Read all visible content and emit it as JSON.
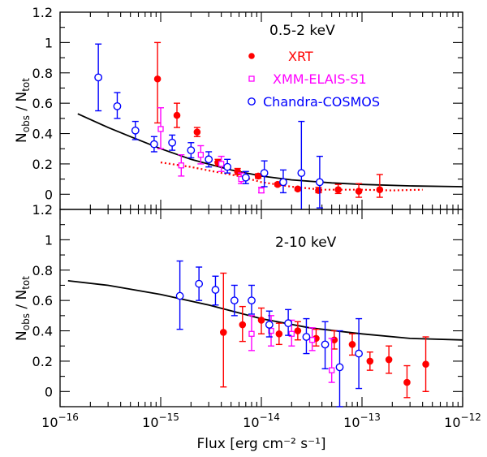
{
  "chart_data": [
    {
      "type": "scatter",
      "panel": "0.5-2 keV",
      "xscale": "log",
      "xlim": [
        1e-16,
        1e-12
      ],
      "ylim": [
        -0.1,
        1.2
      ],
      "ylabel": "N_obs / N_tot",
      "ylabel_main": "N",
      "ylabel_sub1": "obs",
      "ylabel_slash": " / N",
      "ylabel_sub2": "tot",
      "ytick_labels": [
        "0",
        "0.2",
        "0.4",
        "0.6",
        "0.8",
        "1",
        "1.2"
      ],
      "yticks": [
        0,
        0.2,
        0.4,
        0.6,
        0.8,
        1.0,
        1.2
      ],
      "legend": [
        {
          "name": "XRT",
          "color": "#ff0000",
          "marker": "filled-circle"
        },
        {
          "name": "XMM-ELAIS-S1",
          "color": "#ff00ff",
          "marker": "open-square"
        },
        {
          "name": "Chandra-COSMOS",
          "color": "#0000ff",
          "marker": "open-circle"
        }
      ],
      "model_curve": {
        "color": "#000000",
        "x": [
          1.5e-16,
          3e-16,
          5e-16,
          1e-15,
          2e-15,
          5e-15,
          1e-14,
          2e-14,
          5e-14,
          1e-13,
          3e-13,
          1e-12
        ],
        "y": [
          0.53,
          0.44,
          0.38,
          0.3,
          0.23,
          0.16,
          0.12,
          0.095,
          0.075,
          0.065,
          0.055,
          0.05
        ]
      },
      "dotted_curve": {
        "color": "#ff0000",
        "x": [
          1e-15,
          2e-15,
          4e-15,
          6e-15,
          1e-14,
          2e-14,
          4e-14,
          1e-13,
          2e-13,
          4e-13
        ],
        "y": [
          0.21,
          0.18,
          0.14,
          0.12,
          0.08,
          0.05,
          0.03,
          0.03,
          0.025,
          0.03
        ]
      },
      "series": [
        {
          "name": "XRT",
          "color": "#ff0000",
          "marker": "filled-circle",
          "points": [
            {
              "x": 9.3e-16,
              "y": 0.76,
              "lo": 0.47,
              "hi": 1.0
            },
            {
              "x": 1.45e-15,
              "y": 0.52,
              "lo": 0.44,
              "hi": 0.6
            },
            {
              "x": 2.3e-15,
              "y": 0.41,
              "lo": 0.38,
              "hi": 0.44
            },
            {
              "x": 3.7e-15,
              "y": 0.21,
              "lo": 0.19,
              "hi": 0.23
            },
            {
              "x": 5.8e-15,
              "y": 0.15,
              "lo": 0.13,
              "hi": 0.17
            },
            {
              "x": 9.3e-15,
              "y": 0.12,
              "lo": 0.105,
              "hi": 0.135
            },
            {
              "x": 1.45e-14,
              "y": 0.065,
              "lo": 0.055,
              "hi": 0.075
            },
            {
              "x": 2.3e-14,
              "y": 0.035,
              "lo": 0.025,
              "hi": 0.045
            },
            {
              "x": 3.7e-14,
              "y": 0.025,
              "lo": 0.01,
              "hi": 0.045
            },
            {
              "x": 5.8e-14,
              "y": 0.03,
              "lo": 0.005,
              "hi": 0.065
            },
            {
              "x": 9.3e-14,
              "y": 0.02,
              "lo": -0.02,
              "hi": 0.07
            },
            {
              "x": 1.5e-13,
              "y": 0.03,
              "lo": -0.02,
              "hi": 0.13
            }
          ]
        },
        {
          "name": "XMM-ELAIS-S1",
          "color": "#ff00ff",
          "marker": "open-square",
          "points": [
            {
              "x": 1e-15,
              "y": 0.43,
              "lo": 0.3,
              "hi": 0.57
            },
            {
              "x": 1.6e-15,
              "y": 0.19,
              "lo": 0.12,
              "hi": 0.26
            },
            {
              "x": 2.5e-15,
              "y": 0.26,
              "lo": 0.2,
              "hi": 0.32
            },
            {
              "x": 4e-15,
              "y": 0.2,
              "lo": 0.15,
              "hi": 0.25
            },
            {
              "x": 6.3e-15,
              "y": 0.1,
              "lo": 0.07,
              "hi": 0.14
            },
            {
              "x": 1e-14,
              "y": 0.025,
              "lo": 0.01,
              "hi": 0.045
            }
          ]
        },
        {
          "name": "Chandra-COSMOS",
          "color": "#0000ff",
          "marker": "open-circle",
          "points": [
            {
              "x": 2.4e-16,
              "y": 0.77,
              "lo": 0.55,
              "hi": 0.99
            },
            {
              "x": 3.7e-16,
              "y": 0.58,
              "lo": 0.5,
              "hi": 0.67
            },
            {
              "x": 5.6e-16,
              "y": 0.42,
              "lo": 0.36,
              "hi": 0.48
            },
            {
              "x": 8.6e-16,
              "y": 0.33,
              "lo": 0.28,
              "hi": 0.38
            },
            {
              "x": 1.3e-15,
              "y": 0.34,
              "lo": 0.29,
              "hi": 0.39
            },
            {
              "x": 2e-15,
              "y": 0.29,
              "lo": 0.24,
              "hi": 0.34
            },
            {
              "x": 3e-15,
              "y": 0.23,
              "lo": 0.18,
              "hi": 0.28
            },
            {
              "x": 4.6e-15,
              "y": 0.18,
              "lo": 0.14,
              "hi": 0.23
            },
            {
              "x": 7e-15,
              "y": 0.11,
              "lo": 0.07,
              "hi": 0.15
            },
            {
              "x": 1.07e-14,
              "y": 0.14,
              "lo": 0.05,
              "hi": 0.22
            },
            {
              "x": 1.65e-14,
              "y": 0.08,
              "lo": 0.01,
              "hi": 0.16
            },
            {
              "x": 2.5e-14,
              "y": 0.14,
              "lo": -0.12,
              "hi": 0.48
            },
            {
              "x": 3.8e-14,
              "y": 0.08,
              "lo": -0.09,
              "hi": 0.25
            }
          ]
        }
      ]
    },
    {
      "type": "scatter",
      "panel": "2-10 keV",
      "xscale": "log",
      "xlim": [
        1e-16,
        1e-12
      ],
      "ylim": [
        -0.1,
        1.2
      ],
      "xlabel": "Flux [erg cm⁻² s⁻¹]",
      "ylabel": "N_obs / N_tot",
      "ylabel_main": "N",
      "ylabel_sub1": "obs",
      "ylabel_slash": " / N",
      "ylabel_sub2": "tot",
      "ytick_labels": [
        "0",
        "0.2",
        "0.4",
        "0.6",
        "0.8",
        "1",
        "1.2"
      ],
      "yticks": [
        0,
        0.2,
        0.4,
        0.6,
        0.8,
        1.0,
        1.2
      ],
      "xtick_labels": [
        {
          "mant": "10",
          "exp": "−16"
        },
        {
          "mant": "10",
          "exp": "−15"
        },
        {
          "mant": "10",
          "exp": "−14"
        },
        {
          "mant": "10",
          "exp": "−13"
        },
        {
          "mant": "10",
          "exp": "−12"
        }
      ],
      "xticks": [
        1e-16,
        1e-15,
        1e-14,
        1e-13,
        1e-12
      ],
      "model_curve": {
        "color": "#000000",
        "x": [
          1.2e-16,
          3e-16,
          1e-15,
          3e-15,
          1e-14,
          3e-14,
          1e-13,
          3e-13,
          1e-12
        ],
        "y": [
          0.73,
          0.7,
          0.64,
          0.57,
          0.48,
          0.42,
          0.38,
          0.35,
          0.34
        ]
      },
      "series": [
        {
          "name": "XRT",
          "color": "#ff0000",
          "points": [
            {
              "x": 4.2e-15,
              "y": 0.39,
              "lo": 0.03,
              "hi": 0.78
            },
            {
              "x": 6.5e-15,
              "y": 0.44,
              "lo": 0.33,
              "hi": 0.56
            },
            {
              "x": 1e-14,
              "y": 0.47,
              "lo": 0.38,
              "hi": 0.55
            },
            {
              "x": 1.5e-14,
              "y": 0.38,
              "lo": 0.31,
              "hi": 0.45
            },
            {
              "x": 2.3e-14,
              "y": 0.4,
              "lo": 0.34,
              "hi": 0.46
            },
            {
              "x": 3.5e-14,
              "y": 0.35,
              "lo": 0.3,
              "hi": 0.41
            },
            {
              "x": 5.3e-14,
              "y": 0.34,
              "lo": 0.28,
              "hi": 0.4
            },
            {
              "x": 8e-14,
              "y": 0.31,
              "lo": 0.24,
              "hi": 0.38
            },
            {
              "x": 1.2e-13,
              "y": 0.2,
              "lo": 0.14,
              "hi": 0.26
            },
            {
              "x": 1.85e-13,
              "y": 0.21,
              "lo": 0.12,
              "hi": 0.3
            },
            {
              "x": 2.8e-13,
              "y": 0.06,
              "lo": -0.04,
              "hi": 0.17
            },
            {
              "x": 4.3e-13,
              "y": 0.18,
              "lo": 0.0,
              "hi": 0.36
            }
          ]
        },
        {
          "name": "XMM-ELAIS-S1",
          "color": "#ff00ff",
          "points": [
            {
              "x": 8e-15,
              "y": 0.38,
              "lo": 0.27,
              "hi": 0.5
            },
            {
              "x": 1.25e-14,
              "y": 0.4,
              "lo": 0.3,
              "hi": 0.5
            },
            {
              "x": 2e-14,
              "y": 0.38,
              "lo": 0.3,
              "hi": 0.47
            },
            {
              "x": 3.2e-14,
              "y": 0.34,
              "lo": 0.27,
              "hi": 0.42
            },
            {
              "x": 5e-14,
              "y": 0.14,
              "lo": 0.06,
              "hi": 0.35
            }
          ]
        },
        {
          "name": "Chandra-COSMOS",
          "color": "#0000ff",
          "points": [
            {
              "x": 1.55e-15,
              "y": 0.63,
              "lo": 0.41,
              "hi": 0.86
            },
            {
              "x": 2.4e-15,
              "y": 0.71,
              "lo": 0.6,
              "hi": 0.82
            },
            {
              "x": 3.5e-15,
              "y": 0.67,
              "lo": 0.57,
              "hi": 0.76
            },
            {
              "x": 5.4e-15,
              "y": 0.6,
              "lo": 0.5,
              "hi": 0.7
            },
            {
              "x": 8e-15,
              "y": 0.6,
              "lo": 0.51,
              "hi": 0.7
            },
            {
              "x": 1.2e-14,
              "y": 0.44,
              "lo": 0.36,
              "hi": 0.53
            },
            {
              "x": 1.85e-14,
              "y": 0.45,
              "lo": 0.37,
              "hi": 0.54
            },
            {
              "x": 2.8e-14,
              "y": 0.36,
              "lo": 0.25,
              "hi": 0.48
            },
            {
              "x": 4.3e-14,
              "y": 0.31,
              "lo": 0.15,
              "hi": 0.46
            },
            {
              "x": 6e-14,
              "y": 0.16,
              "lo": -0.1,
              "hi": 0.4
            },
            {
              "x": 9.3e-14,
              "y": 0.25,
              "lo": 0.02,
              "hi": 0.48
            }
          ]
        }
      ]
    }
  ]
}
